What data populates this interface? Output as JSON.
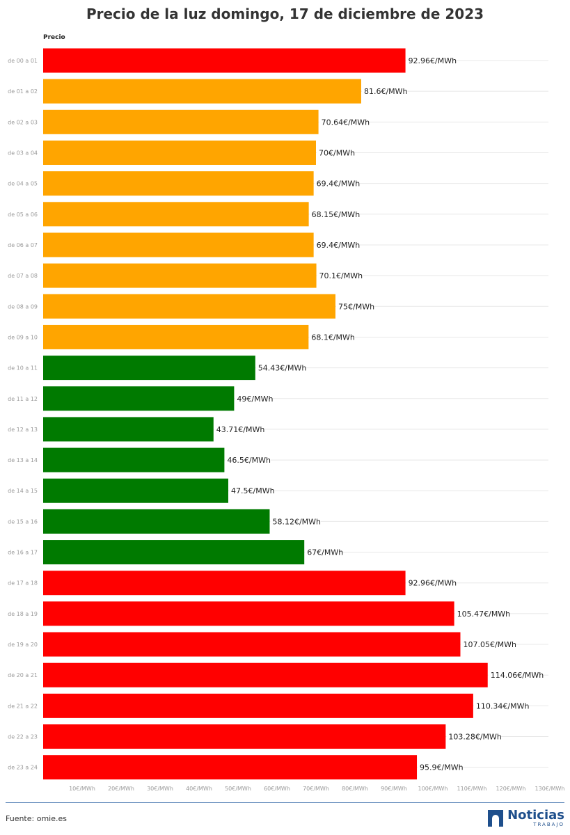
{
  "chart_data": {
    "type": "bar",
    "orientation": "horizontal",
    "title": "Precio de la luz domingo, 17 de diciembre de 2023",
    "column_header": "Precio",
    "unit": "€/MWh",
    "categories": [
      "de 00 a 01",
      "de 01 a 02",
      "de 02 a 03",
      "de 03 a 04",
      "de 04 a 05",
      "de 05 a 06",
      "de 06 a 07",
      "de 07 a 08",
      "de 08 a 09",
      "de 09 a 10",
      "de 10 a 11",
      "de 11 a 12",
      "de 12 a 13",
      "de 13 a 14",
      "de 14 a 15",
      "de 15 a 16",
      "de 16 a 17",
      "de 17 a 18",
      "de 18 a 19",
      "de 19 a 20",
      "de 20 a 21",
      "de 21 a 22",
      "de 22 a 23",
      "de 23 a 24"
    ],
    "values": [
      92.96,
      81.6,
      70.64,
      70,
      69.4,
      68.15,
      69.4,
      70.1,
      75,
      68.1,
      54.43,
      49,
      43.71,
      46.5,
      47.5,
      58.12,
      67,
      92.96,
      105.47,
      107.05,
      114.06,
      110.34,
      103.28,
      95.9
    ],
    "value_labels": [
      "92.96€/MWh",
      "81.6€/MWh",
      "70.64€/MWh",
      "70€/MWh",
      "69.4€/MWh",
      "68.15€/MWh",
      "69.4€/MWh",
      "70.1€/MWh",
      "75€/MWh",
      "68.1€/MWh",
      "54.43€/MWh",
      "49€/MWh",
      "43.71€/MWh",
      "46.5€/MWh",
      "47.5€/MWh",
      "58.12€/MWh",
      "67€/MWh",
      "92.96€/MWh",
      "105.47€/MWh",
      "107.05€/MWh",
      "114.06€/MWh",
      "110.34€/MWh",
      "103.28€/MWh",
      "95.9€/MWh"
    ],
    "bar_colors": [
      "#ff0000",
      "#ffa500",
      "#ffa500",
      "#ffa500",
      "#ffa500",
      "#ffa500",
      "#ffa500",
      "#ffa500",
      "#ffa500",
      "#ffa500",
      "#007a00",
      "#007a00",
      "#007a00",
      "#007a00",
      "#007a00",
      "#007a00",
      "#007a00",
      "#ff0000",
      "#ff0000",
      "#ff0000",
      "#ff0000",
      "#ff0000",
      "#ff0000",
      "#ff0000"
    ],
    "x_ticks": [
      10,
      20,
      30,
      40,
      50,
      60,
      70,
      80,
      90,
      100,
      110,
      120,
      130
    ],
    "x_tick_labels": [
      "10€/MWh",
      "20€/MWh",
      "30€/MWh",
      "40€/MWh",
      "50€/MWh",
      "60€/MWh",
      "70€/MWh",
      "80€/MWh",
      "90€/MWh",
      "100€/MWh",
      "110€/MWh",
      "120€/MWh",
      "130€/MWh"
    ],
    "xlim": [
      0,
      130
    ],
    "grid": true
  },
  "footer": {
    "source": "Fuente: omie.es",
    "logo_name": "Noticias",
    "logo_sub": "TRABAJO"
  }
}
